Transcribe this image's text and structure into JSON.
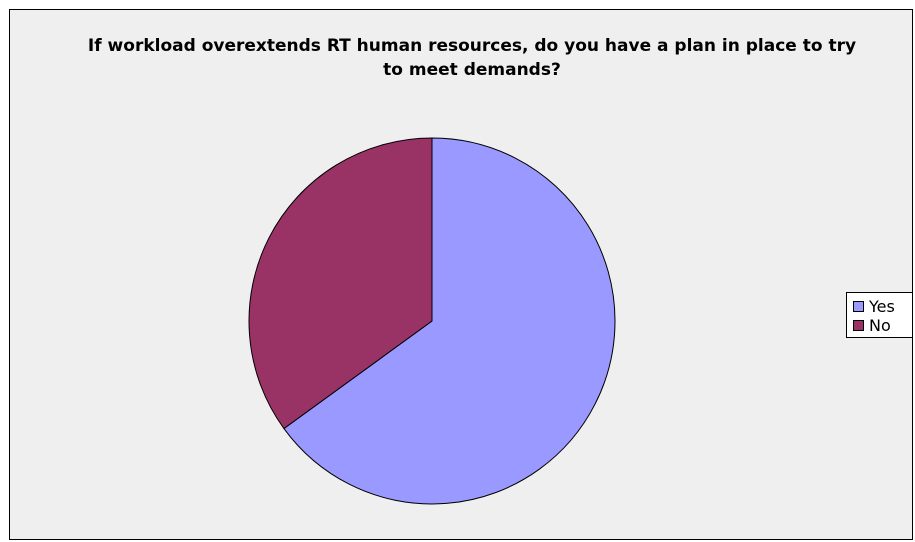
{
  "chart_data": {
    "type": "pie",
    "title": "If workload overextends RT human resources, do you have a plan in place to try to meet demands?",
    "categories": [
      "Yes",
      "No"
    ],
    "values": [
      65,
      35
    ],
    "colors": [
      "#9999ff",
      "#993366"
    ],
    "legend": "right"
  }
}
